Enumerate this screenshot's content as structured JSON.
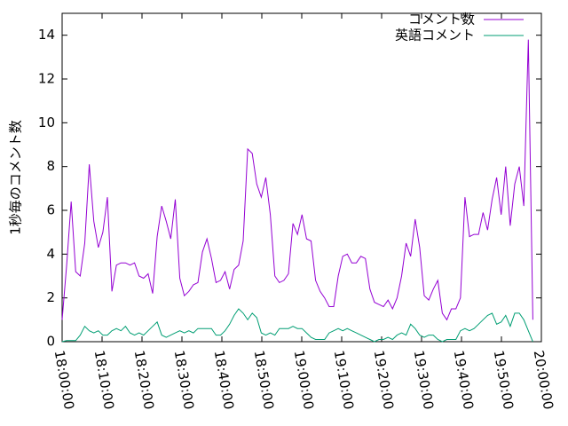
{
  "chart_data": {
    "type": "line",
    "ylabel": "1秒毎のコメント数",
    "x": [
      "18:00:00",
      "18:01:08",
      "18:02:16",
      "18:03:24",
      "18:04:32",
      "18:05:40",
      "18:06:48",
      "18:07:56",
      "18:09:04",
      "18:10:12",
      "18:11:20",
      "18:12:28",
      "18:13:36",
      "18:14:44",
      "18:15:52",
      "18:17:00",
      "18:18:08",
      "18:19:16",
      "18:20:24",
      "18:21:32",
      "18:22:40",
      "18:23:48",
      "18:24:56",
      "18:26:04",
      "18:27:12",
      "18:28:20",
      "18:29:28",
      "18:30:36",
      "18:31:44",
      "18:32:52",
      "18:34:00",
      "18:35:08",
      "18:36:16",
      "18:37:24",
      "18:38:32",
      "18:39:40",
      "18:40:48",
      "18:41:56",
      "18:43:04",
      "18:44:12",
      "18:45:20",
      "18:46:28",
      "18:47:36",
      "18:48:44",
      "18:49:52",
      "18:51:00",
      "18:52:08",
      "18:53:16",
      "18:54:24",
      "18:55:32",
      "18:56:40",
      "18:57:48",
      "18:58:56",
      "19:00:04",
      "19:01:12",
      "19:02:20",
      "19:03:28",
      "19:04:36",
      "19:05:44",
      "19:06:52",
      "19:08:00",
      "19:09:08",
      "19:10:16",
      "19:11:24",
      "19:12:32",
      "19:13:40",
      "19:14:48",
      "19:15:56",
      "19:17:04",
      "19:18:12",
      "19:19:20",
      "19:20:28",
      "19:21:36",
      "19:22:44",
      "19:23:52",
      "19:25:00",
      "19:26:08",
      "19:27:16",
      "19:28:24",
      "19:29:32",
      "19:30:40",
      "19:31:48",
      "19:32:56",
      "19:34:04",
      "19:35:12",
      "19:36:20",
      "19:37:28",
      "19:38:36",
      "19:39:44",
      "19:40:52",
      "19:42:00",
      "19:43:08",
      "19:44:16",
      "19:45:24",
      "19:46:32",
      "19:47:40",
      "19:48:48",
      "19:49:56",
      "19:51:04",
      "19:52:12",
      "19:53:20",
      "19:54:28",
      "19:55:36",
      "19:56:44",
      "19:57:52"
    ],
    "series": [
      {
        "name": "コメント数",
        "color": "#9400d3",
        "values": [
          1.0,
          3.5,
          6.4,
          3.2,
          3.0,
          4.5,
          8.1,
          5.5,
          4.3,
          5.0,
          6.6,
          2.3,
          3.5,
          3.6,
          3.6,
          3.5,
          3.6,
          3.0,
          2.9,
          3.1,
          2.2,
          4.8,
          6.2,
          5.5,
          4.7,
          6.5,
          2.9,
          2.1,
          2.3,
          2.6,
          2.7,
          4.1,
          4.7,
          3.8,
          2.7,
          2.8,
          3.2,
          2.4,
          3.3,
          3.5,
          4.6,
          8.8,
          8.6,
          7.2,
          6.6,
          7.5,
          5.8,
          3.0,
          2.7,
          2.8,
          3.1,
          5.4,
          4.9,
          5.8,
          4.7,
          4.6,
          2.8,
          2.3,
          2.0,
          1.6,
          1.6,
          3.0,
          3.9,
          4.0,
          3.6,
          3.6,
          3.9,
          3.8,
          2.4,
          1.8,
          1.7,
          1.6,
          1.9,
          1.5,
          2.0,
          3.0,
          4.5,
          3.9,
          5.6,
          4.3,
          2.1,
          1.9,
          2.4,
          2.8,
          1.3,
          1.0,
          1.5,
          1.5,
          2.0,
          6.6,
          4.8,
          4.9,
          4.9,
          5.9,
          5.1,
          6.5,
          7.5,
          5.8,
          8.0,
          5.3,
          7.2,
          8.0,
          6.2,
          13.8,
          1.0
        ]
      },
      {
        "name": "英語コメント",
        "color": "#009e73",
        "values": [
          0,
          0.05,
          0.05,
          0.05,
          0.3,
          0.7,
          0.5,
          0.4,
          0.5,
          0.3,
          0.3,
          0.5,
          0.6,
          0.5,
          0.7,
          0.4,
          0.3,
          0.4,
          0.3,
          0.5,
          0.7,
          0.9,
          0.3,
          0.2,
          0.3,
          0.4,
          0.5,
          0.4,
          0.5,
          0.4,
          0.6,
          0.6,
          0.6,
          0.6,
          0.3,
          0.3,
          0.5,
          0.8,
          1.2,
          1.5,
          1.3,
          1.0,
          1.3,
          1.1,
          0.4,
          0.3,
          0.4,
          0.3,
          0.6,
          0.6,
          0.6,
          0.7,
          0.6,
          0.6,
          0.4,
          0.2,
          0.1,
          0.1,
          0.1,
          0.4,
          0.5,
          0.6,
          0.5,
          0.6,
          0.5,
          0.4,
          0.3,
          0.2,
          0.1,
          0.0,
          0.1,
          0.1,
          0.2,
          0.1,
          0.3,
          0.4,
          0.3,
          0.8,
          0.6,
          0.3,
          0.2,
          0.3,
          0.3,
          0.1,
          0.0,
          0.1,
          0.1,
          0.1,
          0.5,
          0.6,
          0.5,
          0.6,
          0.8,
          1.0,
          1.2,
          1.3,
          0.8,
          0.9,
          1.2,
          0.7,
          1.3,
          1.3,
          1.0,
          0.5,
          0.0
        ]
      }
    ],
    "xlim": [
      "18:00:00",
      "20:00:00"
    ],
    "xticks": [
      "18:00:00",
      "18:10:00",
      "18:20:00",
      "18:30:00",
      "18:40:00",
      "18:50:00",
      "19:00:00",
      "19:10:00",
      "19:20:00",
      "19:30:00",
      "19:40:00",
      "19:50:00",
      "20:00:00"
    ],
    "ylim": [
      0,
      15
    ],
    "yticks": [
      0,
      2,
      4,
      6,
      8,
      10,
      12,
      14
    ],
    "legend": "top-right"
  }
}
